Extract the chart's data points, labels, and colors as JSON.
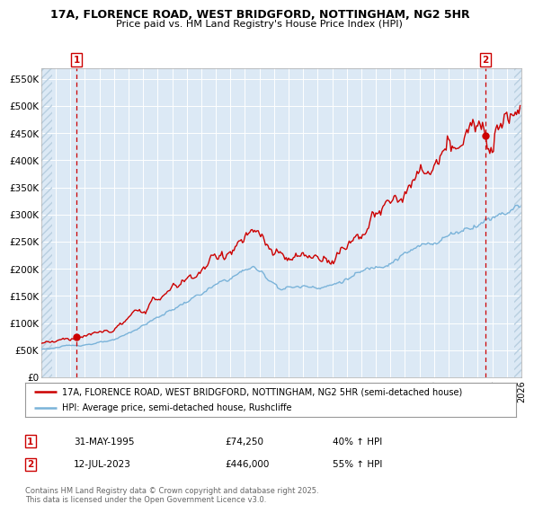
{
  "title1": "17A, FLORENCE ROAD, WEST BRIDGFORD, NOTTINGHAM, NG2 5HR",
  "title2": "Price paid vs. HM Land Registry's House Price Index (HPI)",
  "plot_bg_color": "#dce9f5",
  "hatch_color": "#c0cfe0",
  "red_line_color": "#cc0000",
  "blue_line_color": "#7ab3d9",
  "marker_color": "#cc0000",
  "dashed_vline_color": "#cc0000",
  "legend_label_red": "17A, FLORENCE ROAD, WEST BRIDGFORD, NOTTINGHAM, NG2 5HR (semi-detached house)",
  "legend_label_blue": "HPI: Average price, semi-detached house, Rushcliffe",
  "annotation1_date": "31-MAY-1995",
  "annotation1_price": "£74,250",
  "annotation1_hpi": "40% ↑ HPI",
  "annotation2_date": "12-JUL-2023",
  "annotation2_price": "£446,000",
  "annotation2_hpi": "55% ↑ HPI",
  "footer": "Contains HM Land Registry data © Crown copyright and database right 2025.\nThis data is licensed under the Open Government Licence v3.0.",
  "yticks": [
    0,
    50000,
    100000,
    150000,
    200000,
    250000,
    300000,
    350000,
    400000,
    450000,
    500000,
    550000
  ],
  "ytick_labels": [
    "£0",
    "£50K",
    "£100K",
    "£150K",
    "£200K",
    "£250K",
    "£300K",
    "£350K",
    "£400K",
    "£450K",
    "£500K",
    "£550K"
  ],
  "sale1_x": 1995.42,
  "sale1_y": 74250,
  "sale2_x": 2023.53,
  "sale2_y": 446000,
  "xmin": 1993.0,
  "xmax": 2026.0,
  "hatch_left_end": 1993.75,
  "hatch_right_start": 2025.5
}
